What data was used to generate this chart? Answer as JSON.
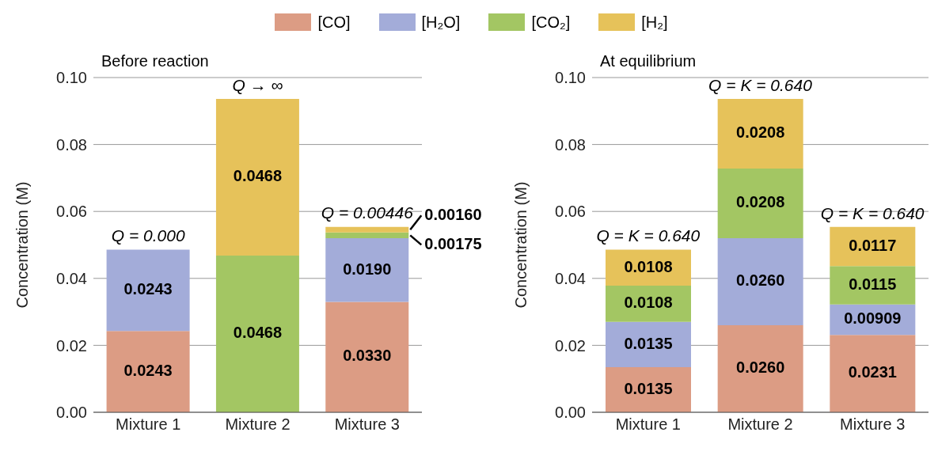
{
  "chart_data": [
    {
      "type": "bar",
      "title": "Before reaction",
      "ylabel": "Concentration (M)",
      "stacked": true,
      "categories": [
        "Mixture 1",
        "Mixture 2",
        "Mixture 3"
      ],
      "series": [
        {
          "name": "[CO]",
          "color": "#dc9c84",
          "values": [
            0.0243,
            null,
            0.033
          ],
          "value_labels": [
            "0.0243",
            null,
            "0.0330"
          ]
        },
        {
          "name": "[H₂O]",
          "color": "#a3acd9",
          "values": [
            0.0243,
            null,
            0.019
          ],
          "value_labels": [
            "0.0243",
            null,
            "0.0190"
          ]
        },
        {
          "name": "[CO₂]",
          "color": "#a3c663",
          "values": [
            null,
            0.0468,
            0.00175
          ],
          "value_labels": [
            null,
            "0.0468",
            "0.00175"
          ]
        },
        {
          "name": "[H₂]",
          "color": "#e6c25a",
          "values": [
            null,
            0.0468,
            0.0016
          ],
          "value_labels": [
            null,
            "0.0468",
            "0.00160"
          ]
        }
      ],
      "ylim": [
        0,
        0.1
      ],
      "yticks": [
        {
          "value": 0,
          "label": "0.00"
        },
        {
          "value": 0.02,
          "label": "0.02"
        },
        {
          "value": 0.04,
          "label": "0.04"
        },
        {
          "value": 0.06,
          "label": "0.06"
        },
        {
          "value": 0.08,
          "label": "0.08"
        },
        {
          "value": 0.1,
          "label": "0.10"
        }
      ],
      "grid": "y",
      "legend": "top",
      "annotations": [
        {
          "text": "Q = 0.000",
          "x": "Mixture 1",
          "y": 0.0486
        },
        {
          "text": "Q → ∞",
          "x": "Mixture 2",
          "y": 0.0936
        },
        {
          "text": "Q = 0.00446",
          "x": "Mixture 3",
          "y": 0.05565
        }
      ]
    },
    {
      "type": "bar",
      "title": "At equilibrium",
      "ylabel": "Concentration (M)",
      "stacked": true,
      "categories": [
        "Mixture 1",
        "Mixture 2",
        "Mixture 3"
      ],
      "series": [
        {
          "color": "#dc9c84",
          "values": [
            0.0135,
            0.026,
            0.0231
          ],
          "value_labels": [
            "0.0135",
            "0.0260",
            "0.0231"
          ]
        },
        {
          "color": "#a3acd9",
          "values": [
            0.0135,
            0.026,
            0.00909
          ],
          "value_labels": [
            "0.0135",
            "0.0260",
            "0.00909"
          ]
        },
        {
          "color": "#a3c663",
          "values": [
            0.0108,
            0.0208,
            0.0115
          ],
          "value_labels": [
            "0.0108",
            "0.0208",
            "0.0115"
          ]
        },
        {
          "color": "#e6c25a",
          "values": [
            0.0108,
            0.0208,
            0.0117
          ],
          "value_labels": [
            "0.0108",
            "0.0208",
            "0.0117"
          ]
        }
      ],
      "ylim": [
        0,
        0.1
      ],
      "yticks": [
        {
          "value": 0,
          "label": "0.00"
        },
        {
          "value": 0.02,
          "label": "0.02"
        },
        {
          "value": 0.04,
          "label": "0.04"
        },
        {
          "value": 0.06,
          "label": "0.06"
        },
        {
          "value": 0.08,
          "label": "0.08"
        },
        {
          "value": 0.1,
          "label": "0.10"
        }
      ],
      "grid": "y",
      "annotations": [
        {
          "text": "Q = K = 0.640",
          "x": "Mixture 1",
          "y": 0.0486
        },
        {
          "text": "Q = K = 0.640",
          "x": "Mixture 2",
          "y": 0.0936
        },
        {
          "text": "Q = K = 0.640",
          "x": "Mixture 3",
          "y": 0.05539
        }
      ]
    }
  ]
}
